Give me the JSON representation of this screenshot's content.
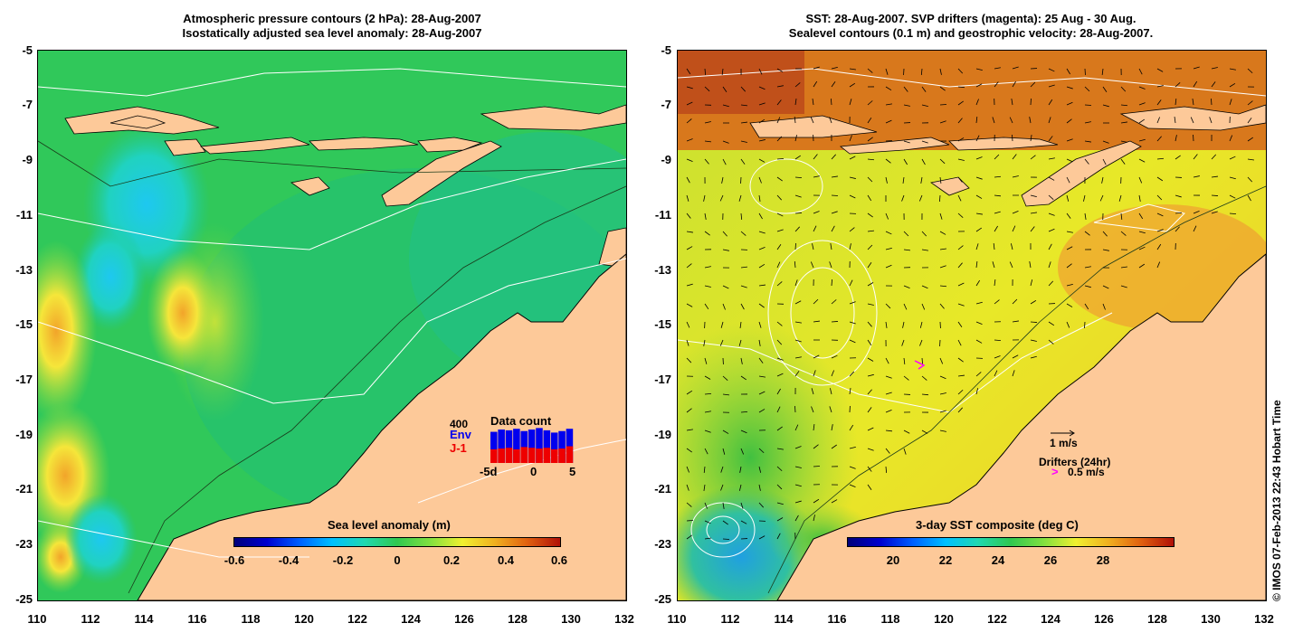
{
  "left_panel": {
    "title_line1": "Atmospheric pressure contours (2 hPa): 28-Aug-2007",
    "title_line2": "Isostatically adjusted sea level anomaly: 28-Aug-2007",
    "y_ticks": [
      "-5",
      "-7",
      "-9",
      "-11",
      "-13",
      "-15",
      "-17",
      "-19",
      "-21",
      "-23",
      "-25"
    ],
    "x_ticks": [
      "110",
      "112",
      "114",
      "116",
      "118",
      "120",
      "122",
      "124",
      "126",
      "128",
      "130",
      "132"
    ],
    "colorbar_label": "Sea level anomaly (m)",
    "colorbar_ticks": [
      "-0.6",
      "-0.4",
      "-0.2",
      "0",
      "0.2",
      "0.4",
      "0.6"
    ],
    "data_count": {
      "title": "Data count",
      "max_label": "400",
      "env_label": "Env",
      "j1_label": "J-1",
      "x_labels": [
        "-5d",
        "0",
        "5"
      ],
      "env_values": [
        0.82,
        0.88,
        0.86,
        0.9,
        0.84,
        0.88,
        0.92,
        0.86,
        0.8,
        0.84,
        0.9
      ],
      "j1_values": [
        0.36,
        0.38,
        0.4,
        0.36,
        0.42,
        0.4,
        0.38,
        0.4,
        0.36,
        0.38,
        0.44
      ]
    }
  },
  "right_panel": {
    "title_line1": "SST: 28-Aug-2007. SVP drifters (magenta): 25 Aug - 30 Aug.",
    "title_line2": "Sealevel contours (0.1 m) and geostrophic velocity: 28-Aug-2007.",
    "y_ticks": [
      "-5",
      "-7",
      "-9",
      "-11",
      "-13",
      "-15",
      "-17",
      "-19",
      "-21",
      "-23",
      "-25"
    ],
    "x_ticks": [
      "110",
      "112",
      "114",
      "116",
      "118",
      "120",
      "122",
      "124",
      "126",
      "128",
      "130",
      "132"
    ],
    "colorbar_label": "3-day SST composite (deg C)",
    "colorbar_ticks": [
      "20",
      "22",
      "24",
      "26",
      "28"
    ],
    "velocity_legend": "1 m/s",
    "drifters_label": "Drifters (24hr)",
    "drifters_speed": "0.5 m/s",
    "drifter_marker": ">"
  },
  "copyright": "© IMOS 07-Feb-2013 22:43 Hobart Time",
  "colors": {
    "land": "#fdc999",
    "env_bar": "#0000ee",
    "j1_bar": "#ee0000",
    "drifter": "#ff00ff"
  }
}
